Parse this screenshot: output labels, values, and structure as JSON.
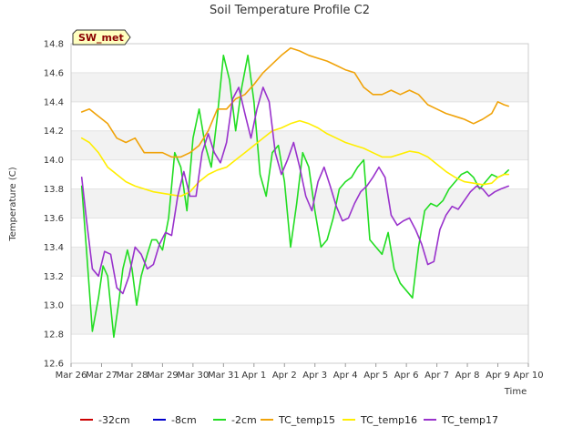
{
  "chart_data": {
    "type": "line",
    "title": "Soil Temperature Profile C2",
    "xlabel": "Time",
    "ylabel": "Temperature (C)",
    "ylim": [
      12.6,
      14.8
    ],
    "xlim": [
      0,
      15
    ],
    "yticks": [
      12.6,
      12.8,
      13.0,
      13.2,
      13.4,
      13.6,
      13.8,
      14.0,
      14.2,
      14.4,
      14.6,
      14.8
    ],
    "ytick_labels": [
      "12.6",
      "12.8",
      "13.0",
      "13.2",
      "13.4",
      "13.6",
      "13.8",
      "14.0",
      "14.2",
      "14.4",
      "14.6",
      "14.8"
    ],
    "xticks": [
      0,
      1,
      2,
      3,
      4,
      5,
      6,
      7,
      8,
      9,
      10,
      11,
      12,
      13,
      14,
      15
    ],
    "xtick_labels": [
      "Mar 26",
      "Mar 27",
      "Mar 28",
      "Mar 29",
      "Mar 30",
      "Mar 31",
      "Apr 1",
      "Apr 2",
      "Apr 3",
      "Apr 4",
      "Apr 5",
      "Apr 6",
      "Apr 7",
      "Apr 8",
      "Apr 9",
      "Apr 10"
    ],
    "badge": "SW_met",
    "legend_position": "bottom",
    "series": [
      {
        "name": "-32cm",
        "color": "#cc0000",
        "x": [],
        "y": []
      },
      {
        "name": "-8cm",
        "color": "#0000cc",
        "x": [],
        "y": []
      },
      {
        "name": "-2cm",
        "color": "#22dd22",
        "x": [
          0.35,
          0.5,
          0.7,
          0.9,
          1.05,
          1.2,
          1.4,
          1.55,
          1.7,
          1.85,
          2.0,
          2.15,
          2.3,
          2.5,
          2.65,
          2.8,
          3.0,
          3.2,
          3.4,
          3.6,
          3.8,
          3.9,
          4.0,
          4.2,
          4.4,
          4.6,
          4.8,
          5.0,
          5.2,
          5.4,
          5.6,
          5.8,
          6.0,
          6.2,
          6.4,
          6.6,
          6.8,
          7.0,
          7.2,
          7.4,
          7.6,
          7.8,
          8.0,
          8.2,
          8.4,
          8.6,
          8.8,
          9.0,
          9.2,
          9.4,
          9.6,
          9.8,
          10.0,
          10.2,
          10.4,
          10.6,
          10.8,
          11.0,
          11.2,
          11.4,
          11.6,
          11.8,
          12.0,
          12.2,
          12.4,
          12.6,
          12.8,
          13.0,
          13.2,
          13.4,
          13.6,
          13.8,
          14.0,
          14.2,
          14.35
        ],
        "y": [
          13.82,
          13.4,
          12.82,
          13.05,
          13.27,
          13.2,
          12.78,
          13.0,
          13.25,
          13.38,
          13.25,
          13.0,
          13.2,
          13.35,
          13.45,
          13.45,
          13.38,
          13.6,
          14.05,
          13.95,
          13.65,
          13.9,
          14.15,
          14.35,
          14.1,
          13.95,
          14.3,
          14.72,
          14.55,
          14.2,
          14.5,
          14.72,
          14.4,
          13.9,
          13.75,
          14.05,
          14.1,
          13.85,
          13.4,
          13.7,
          14.05,
          13.95,
          13.65,
          13.4,
          13.45,
          13.6,
          13.8,
          13.85,
          13.88,
          13.95,
          14.0,
          13.45,
          13.4,
          13.35,
          13.5,
          13.25,
          13.15,
          13.1,
          13.05,
          13.4,
          13.65,
          13.7,
          13.68,
          13.72,
          13.8,
          13.85,
          13.9,
          13.92,
          13.88,
          13.8,
          13.85,
          13.9,
          13.88,
          13.9,
          13.93
        ]
      },
      {
        "name": "TC_temp15",
        "color": "#f0a30a",
        "x": [
          0.35,
          0.6,
          0.9,
          1.2,
          1.5,
          1.8,
          2.1,
          2.4,
          2.7,
          3.0,
          3.3,
          3.6,
          3.9,
          4.2,
          4.5,
          4.8,
          5.1,
          5.4,
          5.7,
          6.0,
          6.3,
          6.6,
          6.9,
          7.2,
          7.5,
          7.8,
          8.1,
          8.4,
          8.7,
          9.0,
          9.3,
          9.6,
          9.9,
          10.2,
          10.5,
          10.8,
          11.1,
          11.4,
          11.7,
          12.0,
          12.3,
          12.6,
          12.9,
          13.2,
          13.5,
          13.8,
          14.0,
          14.2,
          14.35
        ],
        "y": [
          14.33,
          14.35,
          14.3,
          14.25,
          14.15,
          14.12,
          14.15,
          14.05,
          14.05,
          14.05,
          14.02,
          14.02,
          14.05,
          14.1,
          14.2,
          14.35,
          14.35,
          14.42,
          14.45,
          14.52,
          14.6,
          14.66,
          14.72,
          14.77,
          14.75,
          14.72,
          14.7,
          14.68,
          14.65,
          14.62,
          14.6,
          14.5,
          14.45,
          14.45,
          14.48,
          14.45,
          14.48,
          14.45,
          14.38,
          14.35,
          14.32,
          14.3,
          14.28,
          14.25,
          14.28,
          14.32,
          14.4,
          14.38,
          14.37
        ]
      },
      {
        "name": "TC_temp16",
        "color": "#ffee00",
        "x": [
          0.35,
          0.6,
          0.9,
          1.2,
          1.5,
          1.8,
          2.1,
          2.4,
          2.7,
          3.0,
          3.3,
          3.6,
          3.9,
          4.2,
          4.5,
          4.8,
          5.1,
          5.4,
          5.7,
          6.0,
          6.3,
          6.6,
          6.9,
          7.2,
          7.5,
          7.8,
          8.1,
          8.4,
          8.7,
          9.0,
          9.3,
          9.6,
          9.9,
          10.2,
          10.5,
          10.8,
          11.1,
          11.4,
          11.7,
          12.0,
          12.3,
          12.6,
          12.9,
          13.2,
          13.5,
          13.8,
          14.0,
          14.2,
          14.35
        ],
        "y": [
          14.15,
          14.12,
          14.05,
          13.95,
          13.9,
          13.85,
          13.82,
          13.8,
          13.78,
          13.77,
          13.76,
          13.75,
          13.78,
          13.85,
          13.9,
          13.93,
          13.95,
          14.0,
          14.05,
          14.1,
          14.15,
          14.2,
          14.22,
          14.25,
          14.27,
          14.25,
          14.22,
          14.18,
          14.15,
          14.12,
          14.1,
          14.08,
          14.05,
          14.02,
          14.02,
          14.04,
          14.06,
          14.05,
          14.02,
          13.97,
          13.92,
          13.88,
          13.85,
          13.84,
          13.83,
          13.84,
          13.88,
          13.9,
          13.9
        ]
      },
      {
        "name": "TC_temp17",
        "color": "#9932cc",
        "x": [
          0.35,
          0.5,
          0.7,
          0.9,
          1.1,
          1.3,
          1.5,
          1.7,
          1.9,
          2.1,
          2.3,
          2.5,
          2.7,
          2.9,
          3.1,
          3.3,
          3.5,
          3.7,
          3.9,
          4.1,
          4.3,
          4.5,
          4.7,
          4.9,
          5.1,
          5.3,
          5.5,
          5.7,
          5.9,
          6.1,
          6.3,
          6.5,
          6.7,
          6.9,
          7.1,
          7.3,
          7.5,
          7.7,
          7.9,
          8.1,
          8.3,
          8.5,
          8.7,
          8.9,
          9.1,
          9.3,
          9.5,
          9.7,
          9.9,
          10.1,
          10.3,
          10.5,
          10.7,
          10.9,
          11.1,
          11.3,
          11.5,
          11.7,
          11.9,
          12.1,
          12.3,
          12.5,
          12.7,
          12.9,
          13.1,
          13.3,
          13.5,
          13.7,
          13.9,
          14.1,
          14.35
        ],
        "y": [
          13.88,
          13.6,
          13.25,
          13.2,
          13.37,
          13.35,
          13.12,
          13.08,
          13.2,
          13.4,
          13.35,
          13.25,
          13.28,
          13.42,
          13.5,
          13.48,
          13.75,
          13.92,
          13.75,
          13.75,
          14.05,
          14.18,
          14.05,
          13.98,
          14.12,
          14.42,
          14.5,
          14.32,
          14.15,
          14.35,
          14.5,
          14.4,
          14.05,
          13.9,
          14.0,
          14.12,
          13.95,
          13.75,
          13.65,
          13.85,
          13.95,
          13.82,
          13.68,
          13.58,
          13.6,
          13.7,
          13.78,
          13.82,
          13.88,
          13.95,
          13.88,
          13.62,
          13.55,
          13.58,
          13.6,
          13.52,
          13.42,
          13.28,
          13.3,
          13.52,
          13.62,
          13.68,
          13.66,
          13.72,
          13.78,
          13.82,
          13.8,
          13.75,
          13.78,
          13.8,
          13.82
        ]
      }
    ]
  }
}
